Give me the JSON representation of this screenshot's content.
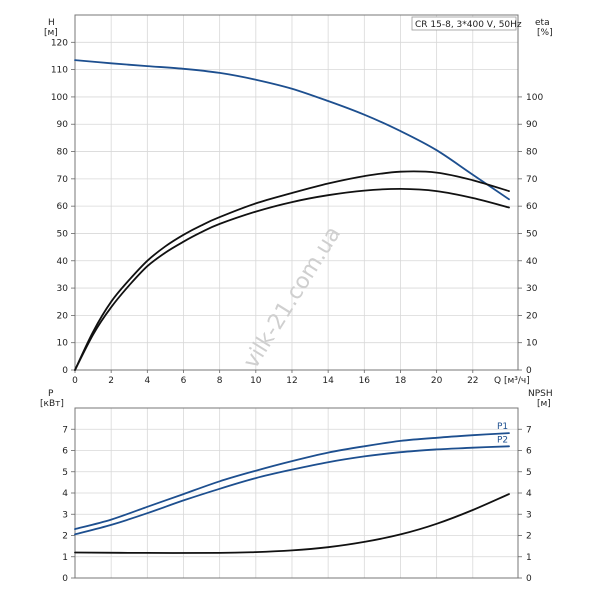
{
  "chart_data": {
    "type": "line",
    "title": "CR 15-8, 3*400 V, 50Hz",
    "watermark": "vilk-21.com.ua",
    "colors": {
      "blue": "#1d4f8f",
      "black": "#111111",
      "grid": "#d8d8d8"
    },
    "top": {
      "left_axis": {
        "label": "H",
        "unit": "[м]",
        "range": [
          0,
          130
        ],
        "ticks": [
          0,
          10,
          20,
          30,
          40,
          50,
          60,
          70,
          80,
          90,
          100,
          110,
          120
        ]
      },
      "right_axis": {
        "label": "eta",
        "unit": "[%]",
        "range": [
          0,
          130
        ],
        "ticks": [
          0,
          10,
          20,
          30,
          40,
          50,
          60,
          70,
          80,
          90,
          100
        ]
      },
      "x_axis": {
        "label": "Q [м³/ч]",
        "range": [
          0,
          24.5
        ],
        "ticks": [
          0,
          2,
          4,
          6,
          8,
          10,
          12,
          14,
          16,
          18,
          20,
          22
        ]
      },
      "grid": true,
      "series": [
        {
          "color": "#1d4f8f",
          "axis": "left",
          "points": [
            [
              0,
              113.5
            ],
            [
              2,
              112.3
            ],
            [
              4,
              111.3
            ],
            [
              6,
              110.3
            ],
            [
              8,
              108.8
            ],
            [
              10,
              106.3
            ],
            [
              12,
              103
            ],
            [
              14,
              98.5
            ],
            [
              16,
              93.5
            ],
            [
              18,
              87.5
            ],
            [
              20,
              80.5
            ],
            [
              22,
              71.5
            ],
            [
              24,
              62.5
            ]
          ]
        },
        {
          "color": "#111111",
          "axis": "right",
          "points": [
            [
              0,
              0
            ],
            [
              1,
              13
            ],
            [
              2,
              23
            ],
            [
              3,
              31
            ],
            [
              4,
              38
            ],
            [
              5,
              43
            ],
            [
              6,
              47
            ],
            [
              7,
              50.5
            ],
            [
              8,
              53.5
            ],
            [
              10,
              58
            ],
            [
              12,
              61.5
            ],
            [
              14,
              64
            ],
            [
              16,
              65.7
            ],
            [
              18,
              66.3
            ],
            [
              20,
              65.5
            ],
            [
              22,
              63
            ],
            [
              24,
              59.5
            ]
          ]
        },
        {
          "color": "#111111",
          "axis": "right",
          "points": [
            [
              0,
              0
            ],
            [
              1,
              14
            ],
            [
              2,
              25
            ],
            [
              3,
              33
            ],
            [
              4,
              40
            ],
            [
              5,
              45.3
            ],
            [
              6,
              49.5
            ],
            [
              7,
              53
            ],
            [
              8,
              56
            ],
            [
              10,
              61
            ],
            [
              12,
              64.8
            ],
            [
              14,
              68.3
            ],
            [
              16,
              71
            ],
            [
              18,
              72.6
            ],
            [
              20,
              72.3
            ],
            [
              22,
              69.5
            ],
            [
              24,
              65.5
            ]
          ]
        }
      ]
    },
    "bottom": {
      "left_axis": {
        "label": "P",
        "unit": "[кВт]",
        "range": [
          0,
          8
        ],
        "ticks": [
          0,
          1,
          2,
          3,
          4,
          5,
          6,
          7
        ]
      },
      "right_axis": {
        "label": "NPSH",
        "unit": "[м]",
        "range": [
          0,
          8
        ],
        "ticks": [
          0,
          1,
          2,
          3,
          4,
          5,
          6,
          7
        ]
      },
      "x_axis": {
        "range": [
          0,
          24.5
        ]
      },
      "grid": true,
      "series": [
        {
          "name": "P1",
          "color": "#1d4f8f",
          "axis": "left",
          "points": [
            [
              0,
              2.3
            ],
            [
              2,
              2.75
            ],
            [
              4,
              3.35
            ],
            [
              6,
              3.95
            ],
            [
              8,
              4.55
            ],
            [
              10,
              5.05
            ],
            [
              12,
              5.5
            ],
            [
              14,
              5.9
            ],
            [
              16,
              6.2
            ],
            [
              18,
              6.45
            ],
            [
              20,
              6.6
            ],
            [
              22,
              6.72
            ],
            [
              24,
              6.82
            ]
          ]
        },
        {
          "name": "P2",
          "color": "#1d4f8f",
          "axis": "left",
          "points": [
            [
              0,
              2.05
            ],
            [
              2,
              2.5
            ],
            [
              4,
              3.05
            ],
            [
              6,
              3.65
            ],
            [
              8,
              4.2
            ],
            [
              10,
              4.7
            ],
            [
              12,
              5.1
            ],
            [
              14,
              5.45
            ],
            [
              16,
              5.72
            ],
            [
              18,
              5.92
            ],
            [
              20,
              6.05
            ],
            [
              22,
              6.13
            ],
            [
              24,
              6.2
            ]
          ]
        },
        {
          "color": "#111111",
          "axis": "right",
          "points": [
            [
              0,
              1.2
            ],
            [
              4,
              1.18
            ],
            [
              8,
              1.18
            ],
            [
              10,
              1.22
            ],
            [
              12,
              1.3
            ],
            [
              14,
              1.45
            ],
            [
              16,
              1.7
            ],
            [
              18,
              2.05
            ],
            [
              20,
              2.55
            ],
            [
              22,
              3.2
            ],
            [
              24,
              3.95
            ]
          ]
        }
      ]
    }
  }
}
